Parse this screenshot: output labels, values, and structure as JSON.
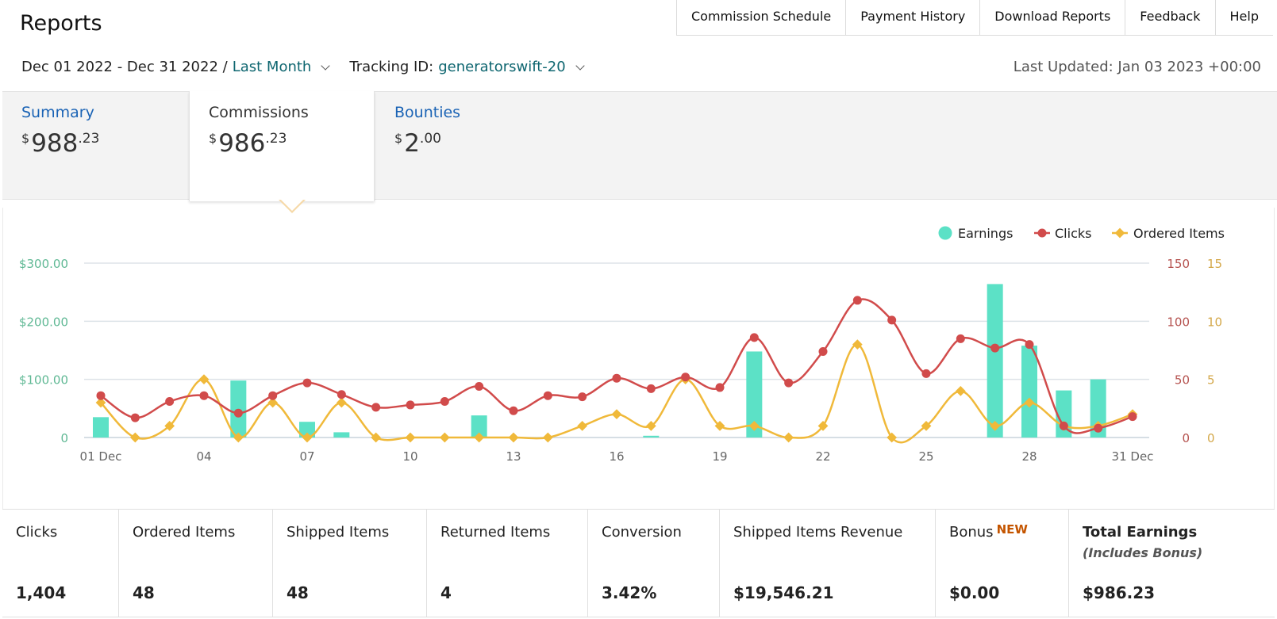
{
  "header": {
    "title": "Reports",
    "nav": [
      "Commission Schedule",
      "Payment History",
      "Download Reports",
      "Feedback",
      "Help"
    ]
  },
  "filters": {
    "date_range": "Dec 01 2022 - Dec 31 2022 /",
    "period": "Last Month",
    "tracking_label": "Tracking ID:",
    "tracking_id": "generatorswift-20",
    "last_updated": "Last Updated: Jan 03 2023 +00:00"
  },
  "tabs": [
    {
      "label": "Summary",
      "currency": "$",
      "whole": "988",
      "cents": ".23"
    },
    {
      "label": "Commissions",
      "currency": "$",
      "whole": "986",
      "cents": ".23",
      "active": true
    },
    {
      "label": "Bounties",
      "currency": "$",
      "whole": "2",
      "cents": ".00"
    }
  ],
  "chart_data": {
    "type": "bar+line",
    "x": [
      "01 Dec",
      "02",
      "03",
      "04",
      "05",
      "06",
      "07",
      "08",
      "09",
      "10",
      "11",
      "12",
      "13",
      "14",
      "15",
      "16",
      "17",
      "18",
      "19",
      "20",
      "21",
      "22",
      "23",
      "24",
      "25",
      "26",
      "27",
      "28",
      "29",
      "30",
      "31 Dec"
    ],
    "x_tick_labels": [
      "01 Dec",
      "04",
      "07",
      "10",
      "13",
      "16",
      "19",
      "22",
      "25",
      "28",
      "31 Dec"
    ],
    "legend": [
      "Earnings",
      "Clicks",
      "Ordered Items"
    ],
    "legend_position": "top-right",
    "colors": {
      "Earnings": "#5ce1c6",
      "Clicks": "#d14b4b",
      "Ordered Items": "#f0b93a"
    },
    "y_left": {
      "ticks": [
        "0",
        "$100.00",
        "$200.00",
        "$300.00"
      ],
      "range": [
        0,
        300
      ],
      "color": "#5fb894"
    },
    "y_right_clicks": {
      "ticks": [
        "0",
        "50",
        "100",
        "150"
      ],
      "range": [
        0,
        150
      ],
      "color": "#b5524f"
    },
    "y_right_items": {
      "ticks": [
        "0",
        "5",
        "10",
        "15"
      ],
      "range": [
        0,
        15
      ],
      "color": "#d4a84a"
    },
    "series": [
      {
        "name": "Earnings",
        "axis": "left",
        "type": "bar",
        "values": [
          35,
          0,
          0,
          0,
          98,
          0,
          27,
          9,
          0,
          0,
          0,
          38,
          0,
          0,
          0,
          0,
          3,
          0,
          0,
          148,
          0,
          0,
          0,
          0,
          0,
          0,
          264,
          158,
          81,
          100,
          0
        ]
      },
      {
        "name": "Clicks",
        "axis": "right_clicks",
        "type": "line",
        "values": [
          36,
          17,
          31,
          36,
          21,
          36,
          47,
          37,
          26,
          28,
          31,
          44,
          23,
          36,
          35,
          51,
          42,
          52,
          43,
          86,
          47,
          74,
          118,
          101,
          55,
          85,
          77,
          80,
          10,
          8,
          18
        ]
      },
      {
        "name": "Ordered Items",
        "axis": "right_items",
        "type": "line",
        "values": [
          3,
          0,
          1,
          5,
          0,
          3,
          0,
          3,
          0,
          0,
          0,
          0,
          0,
          0,
          1,
          2,
          1,
          5,
          1,
          1,
          0,
          1,
          8,
          0,
          1,
          4,
          1,
          3,
          1,
          1,
          2
        ]
      }
    ],
    "grid": true
  },
  "metrics": [
    {
      "label": "Clicks",
      "value": "1,404"
    },
    {
      "label": "Ordered Items",
      "value": "48"
    },
    {
      "label": "Shipped Items",
      "value": "48"
    },
    {
      "label": "Returned Items",
      "value": "4"
    },
    {
      "label": "Conversion",
      "value": "3.42%"
    },
    {
      "label": "Shipped Items Revenue",
      "value": "$19,546.21"
    },
    {
      "label": "Bonus",
      "badge": "NEW",
      "value": "$0.00"
    },
    {
      "label": "Total Earnings",
      "sub": "(Includes Bonus)",
      "value": "$986.23"
    }
  ]
}
